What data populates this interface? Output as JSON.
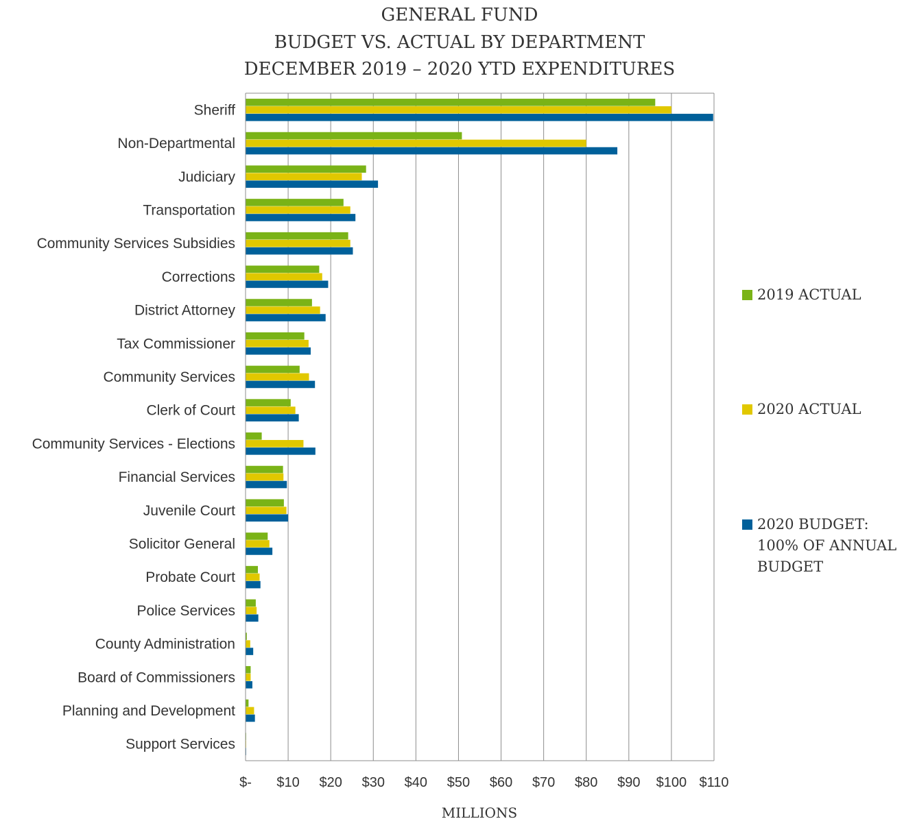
{
  "chart_data": {
    "type": "bar",
    "orientation": "horizontal",
    "title": [
      "GENERAL FUND",
      "BUDGET VS. ACTUAL BY DEPARTMENT",
      "DECEMBER 2019 – 2020 YTD EXPENDITURES"
    ],
    "xlabel": "MILLIONS",
    "ylabel": "",
    "xlim": [
      0,
      110
    ],
    "x_ticks": [
      0,
      10,
      20,
      30,
      40,
      50,
      60,
      70,
      80,
      90,
      100,
      110
    ],
    "x_tick_labels": [
      "$-",
      "$10",
      "$20",
      "$30",
      "$40",
      "$50",
      "$60",
      "$70",
      "$80",
      "$90",
      "$100",
      "$110"
    ],
    "grid": "vertical",
    "legend_position": "right",
    "categories": [
      "Sheriff",
      "Non-Departmental",
      "Judiciary",
      "Transportation",
      "Community Services Subsidies",
      "Corrections",
      "District Attorney",
      "Tax Commissioner",
      "Community Services",
      "Clerk of Court",
      "Community Services - Elections",
      "Financial Services",
      "Juvenile Court",
      "Solicitor General",
      "Probate Court",
      "Police Services",
      "County Administration",
      "Board of Commissioners",
      "Planning and Development",
      "Support Services"
    ],
    "series": [
      {
        "name": "2019 ACTUAL",
        "color": "#7ab317",
        "values": [
          96.2,
          50.8,
          28.3,
          23.0,
          24.1,
          17.3,
          15.6,
          13.8,
          12.7,
          10.6,
          3.8,
          8.8,
          9.0,
          5.2,
          2.9,
          2.4,
          0.3,
          1.2,
          0.7,
          0.1
        ]
      },
      {
        "name": "2020 ACTUAL",
        "color": "#e1c800",
        "values": [
          100.0,
          80.0,
          27.3,
          24.6,
          24.6,
          18.0,
          17.5,
          14.8,
          14.9,
          11.7,
          13.6,
          8.9,
          9.6,
          5.6,
          3.3,
          2.6,
          1.1,
          1.2,
          2.0,
          0.1
        ]
      },
      {
        "name": "2020 BUDGET: 100% OF ANNUAL BUDGET",
        "legend_lines": [
          "2020 BUDGET:",
          "100% OF ANNUAL",
          "BUDGET"
        ],
        "color": "#00609a",
        "values": [
          109.8,
          87.3,
          31.1,
          25.8,
          25.2,
          19.4,
          18.8,
          15.3,
          16.3,
          12.5,
          16.4,
          9.7,
          10.0,
          6.3,
          3.5,
          3.0,
          1.8,
          1.6,
          2.2,
          0.1
        ]
      }
    ]
  }
}
